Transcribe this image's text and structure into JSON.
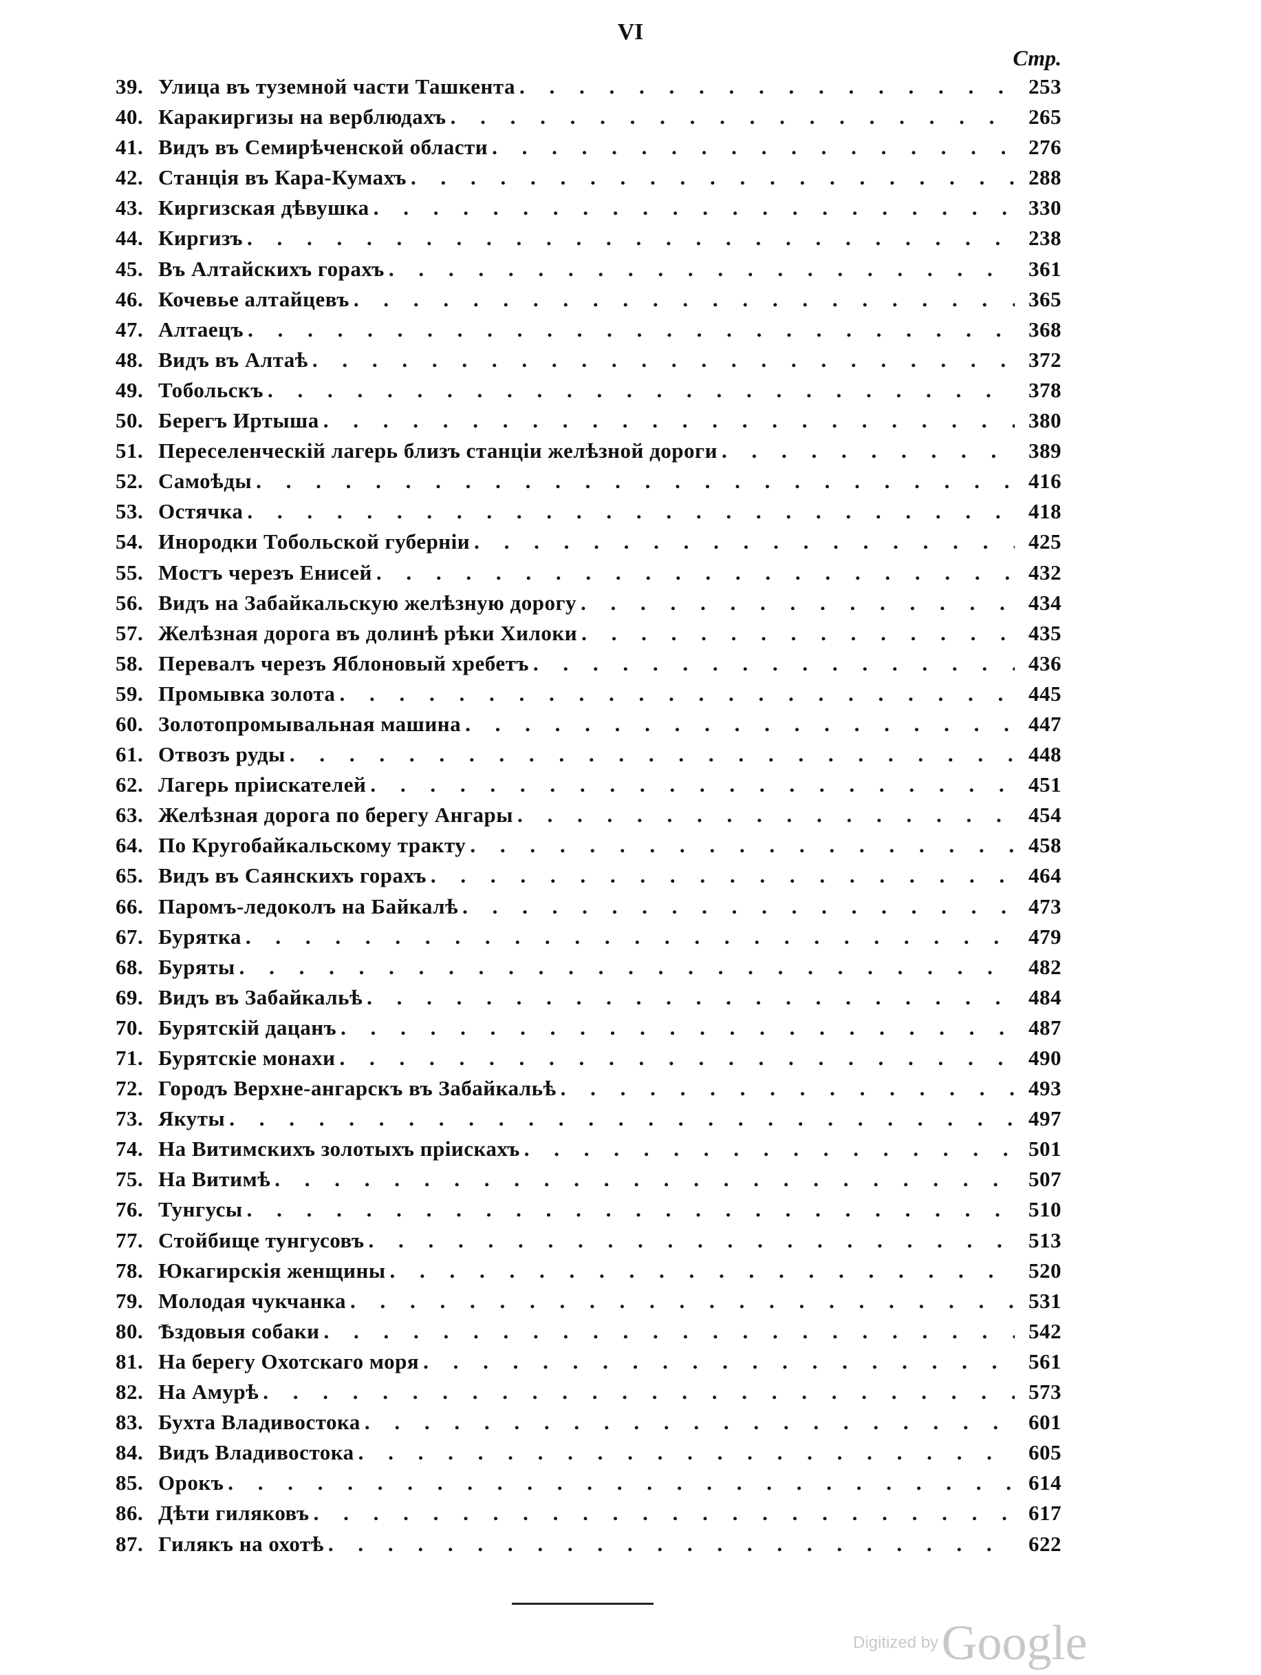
{
  "folio": "VI",
  "column_header": "Стр.",
  "entries": [
    {
      "num": "39.",
      "title": "Улица въ туземной части Ташкента",
      "page": "253"
    },
    {
      "num": "40.",
      "title": "Каракиргизы на верблюдахъ",
      "page": "265"
    },
    {
      "num": "41.",
      "title": "Видъ въ Семирѣченской области",
      "page": "276"
    },
    {
      "num": "42.",
      "title": "Станція въ Кара-Кумахъ",
      "page": "288"
    },
    {
      "num": "43.",
      "title": "Киргизская дѣвушка",
      "page": "330"
    },
    {
      "num": "44.",
      "title": "Киргизъ",
      "page": "238"
    },
    {
      "num": "45.",
      "title": "Въ Алтайскихъ горахъ",
      "page": "361"
    },
    {
      "num": "46.",
      "title": "Кочевье алтайцевъ",
      "page": "365"
    },
    {
      "num": "47.",
      "title": "Алтаецъ",
      "page": "368"
    },
    {
      "num": "48.",
      "title": "Видъ въ Алтаѣ",
      "page": "372"
    },
    {
      "num": "49.",
      "title": "Тобольскъ",
      "page": "378"
    },
    {
      "num": "50.",
      "title": "Берегъ Иртыша",
      "page": "380"
    },
    {
      "num": "51.",
      "title": "Переселенческій лагерь близъ станціи желѣзной дороги",
      "page": "389"
    },
    {
      "num": "52.",
      "title": "Самоѣды",
      "page": "416"
    },
    {
      "num": "53.",
      "title": "Остячка",
      "page": "418"
    },
    {
      "num": "54.",
      "title": "Инородки Тобольской губерніи",
      "page": "425"
    },
    {
      "num": "55.",
      "title": "Мостъ черезъ Енисей",
      "page": "432"
    },
    {
      "num": "56.",
      "title": "Видъ на Забайкальскую желѣзную дорогу",
      "page": "434"
    },
    {
      "num": "57.",
      "title": "Желѣзная дорога въ долинѣ рѣки Хилоки",
      "page": "435"
    },
    {
      "num": "58.",
      "title": "Перевалъ черезъ Яблоновый хребетъ",
      "page": "436"
    },
    {
      "num": "59.",
      "title": "Промывка золота",
      "page": "445"
    },
    {
      "num": "60.",
      "title": "Золотопромывальная машина",
      "page": "447"
    },
    {
      "num": "61.",
      "title": "Отвозъ руды",
      "page": "448"
    },
    {
      "num": "62.",
      "title": "Лагерь пріискателей",
      "page": "451"
    },
    {
      "num": "63.",
      "title": "Желѣзная дорога по берегу Ангары",
      "page": "454"
    },
    {
      "num": "64.",
      "title": "По Кругобайкальскому тракту",
      "page": "458"
    },
    {
      "num": "65.",
      "title": "Видъ въ Саянскихъ горахъ",
      "page": "464"
    },
    {
      "num": "66.",
      "title": "Паромъ-ледоколъ на Байкалѣ",
      "page": "473"
    },
    {
      "num": "67.",
      "title": "Бурятка",
      "page": "479"
    },
    {
      "num": "68.",
      "title": "Буряты",
      "page": "482"
    },
    {
      "num": "69.",
      "title": "Видъ въ Забайкальѣ",
      "page": "484"
    },
    {
      "num": "70.",
      "title": "Бурятскій дацанъ",
      "page": "487"
    },
    {
      "num": "71.",
      "title": "Бурятскіе монахи",
      "page": "490"
    },
    {
      "num": "72.",
      "title": "Городъ Верхне-ангарскъ въ Забайкальѣ",
      "page": "493"
    },
    {
      "num": "73.",
      "title": "Якуты",
      "page": "497"
    },
    {
      "num": "74.",
      "title": "На Витимскихъ золотыхъ пріискахъ",
      "page": "501"
    },
    {
      "num": "75.",
      "title": "На Витимѣ",
      "page": "507"
    },
    {
      "num": "76.",
      "title": "Тунгусы",
      "page": "510"
    },
    {
      "num": "77.",
      "title": "Стойбище тунгусовъ",
      "page": "513"
    },
    {
      "num": "78.",
      "title": "Юкагирскія женщины",
      "page": "520"
    },
    {
      "num": "79.",
      "title": "Молодая чукчанка",
      "page": "531"
    },
    {
      "num": "80.",
      "title": "Ѣздовыя собаки",
      "page": "542"
    },
    {
      "num": "81.",
      "title": "На берегу Охотскаго моря",
      "page": "561"
    },
    {
      "num": "82.",
      "title": "На Амурѣ",
      "page": "573"
    },
    {
      "num": "83.",
      "title": "Бухта Владивостока",
      "page": "601"
    },
    {
      "num": "84.",
      "title": "Видъ Владивостока",
      "page": "605"
    },
    {
      "num": "85.",
      "title": "Орокъ",
      "page": "614"
    },
    {
      "num": "86.",
      "title": "Дѣти гиляковъ",
      "page": "617"
    },
    {
      "num": "87.",
      "title": "Гилякъ на охотѣ",
      "page": "622"
    }
  ],
  "watermark": {
    "prefix": "Digitized by",
    "brand": "Google"
  }
}
